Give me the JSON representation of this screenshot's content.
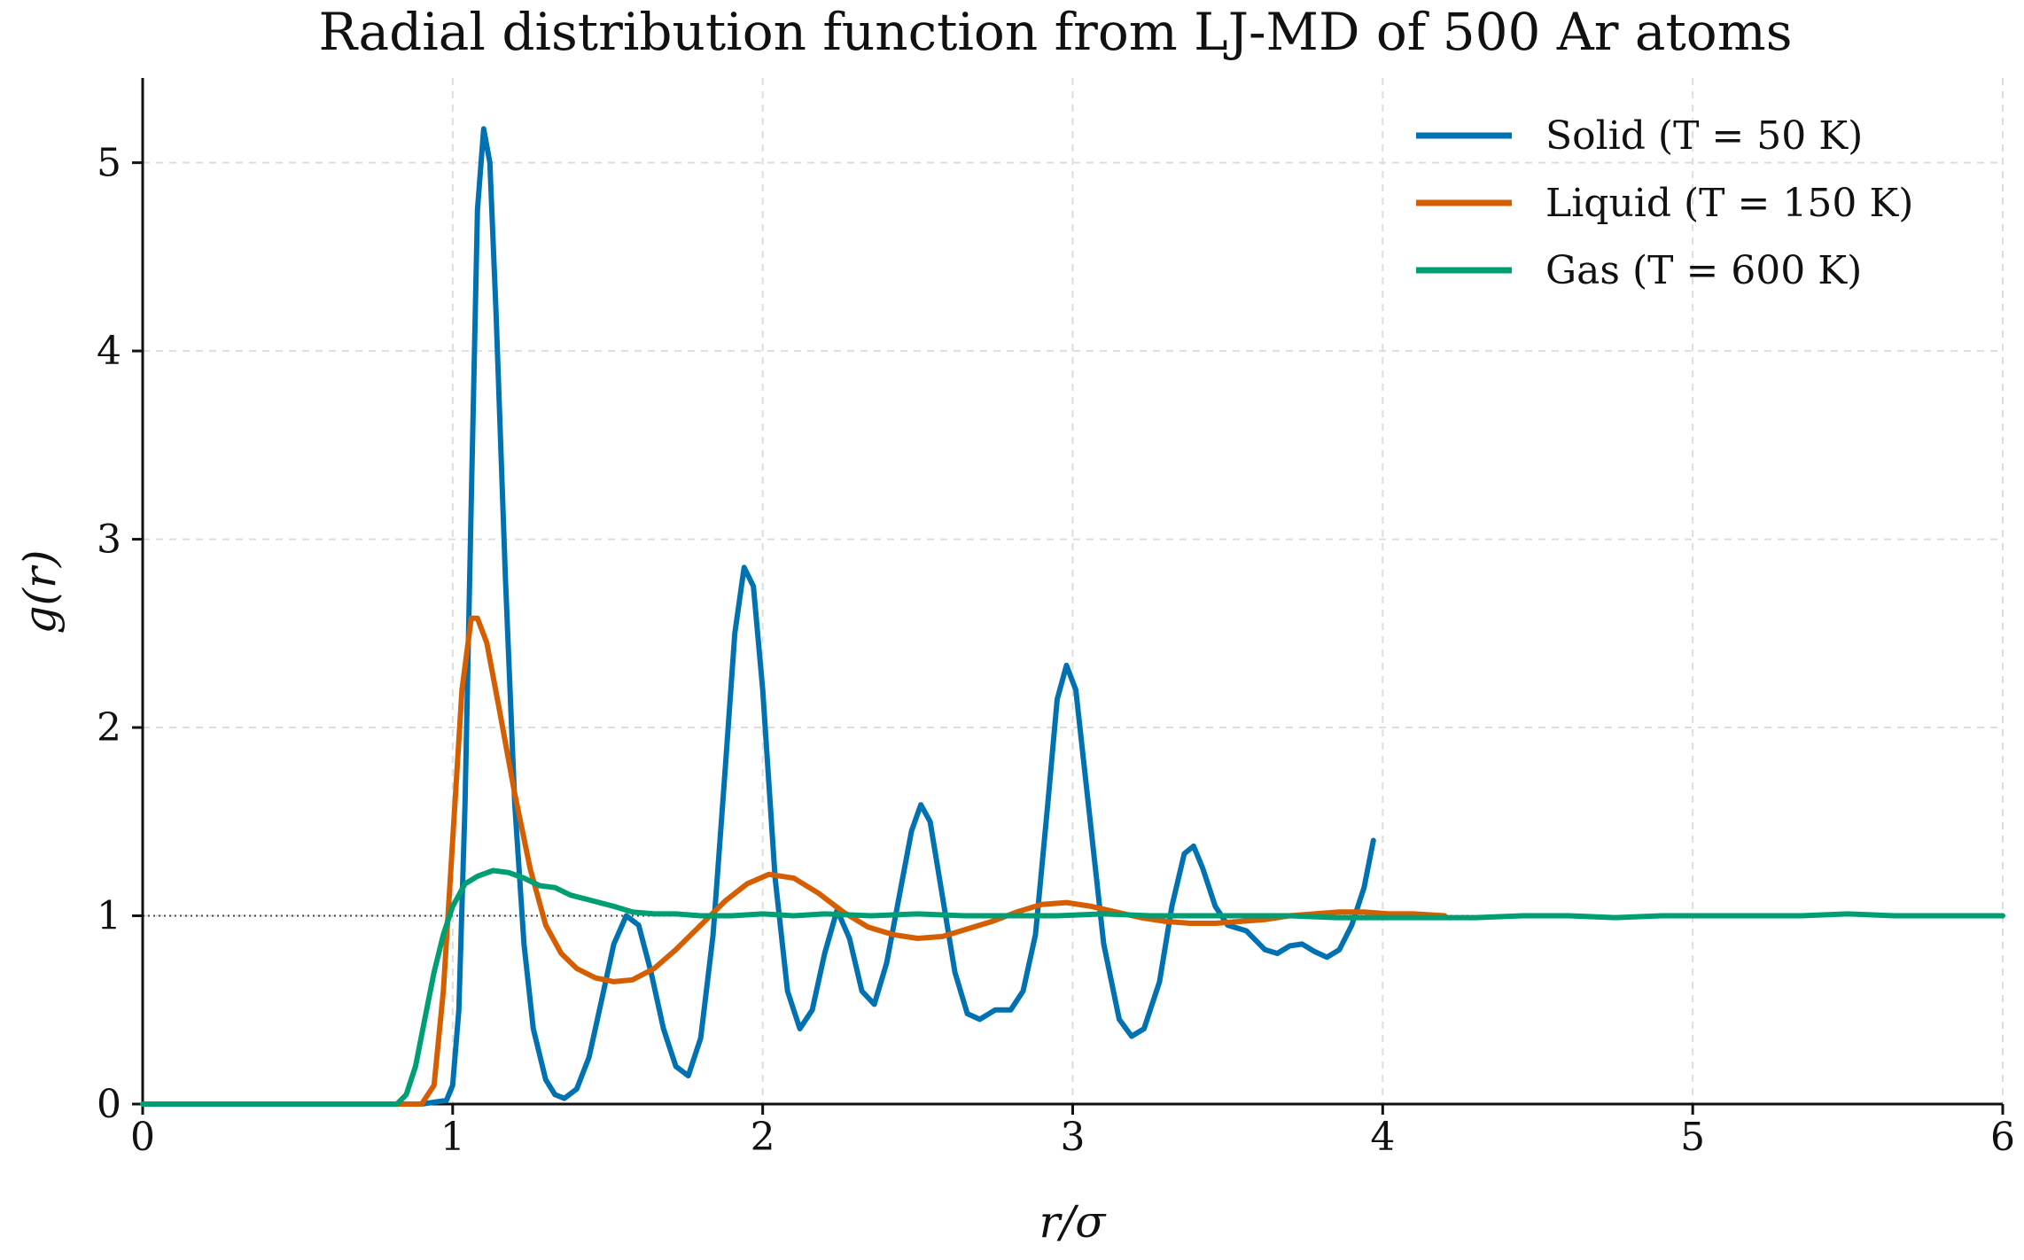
{
  "chart_data": {
    "type": "line",
    "title": "Radial distribution function from LJ-MD of 500 Ar atoms",
    "xlabel": "r/σ",
    "ylabel": "g(r)",
    "xlim": [
      0,
      6
    ],
    "ylim": [
      0,
      5.45
    ],
    "xticks": [
      "0",
      "1",
      "2",
      "3",
      "4",
      "5",
      "6"
    ],
    "yticks": [
      "0",
      "1",
      "2",
      "3",
      "4",
      "5"
    ],
    "grid": true,
    "legend_position": "top-right",
    "reference_line": {
      "y": 1,
      "style": "dotted"
    },
    "series": [
      {
        "name": "Solid (T = 50 K)",
        "color": "#0072B2",
        "points": [
          [
            0,
            0
          ],
          [
            0.9,
            0
          ],
          [
            0.98,
            0.02
          ],
          [
            1.0,
            0.1
          ],
          [
            1.02,
            0.5
          ],
          [
            1.04,
            1.6
          ],
          [
            1.06,
            3.2
          ],
          [
            1.08,
            4.75
          ],
          [
            1.1,
            5.18
          ],
          [
            1.12,
            5.0
          ],
          [
            1.14,
            4.2
          ],
          [
            1.17,
            2.8
          ],
          [
            1.2,
            1.6
          ],
          [
            1.23,
            0.85
          ],
          [
            1.26,
            0.4
          ],
          [
            1.3,
            0.13
          ],
          [
            1.33,
            0.05
          ],
          [
            1.36,
            0.03
          ],
          [
            1.4,
            0.08
          ],
          [
            1.44,
            0.25
          ],
          [
            1.48,
            0.55
          ],
          [
            1.52,
            0.85
          ],
          [
            1.56,
            1.0
          ],
          [
            1.6,
            0.95
          ],
          [
            1.64,
            0.7
          ],
          [
            1.68,
            0.4
          ],
          [
            1.72,
            0.2
          ],
          [
            1.76,
            0.15
          ],
          [
            1.8,
            0.35
          ],
          [
            1.84,
            0.9
          ],
          [
            1.88,
            1.8
          ],
          [
            1.91,
            2.5
          ],
          [
            1.94,
            2.85
          ],
          [
            1.97,
            2.75
          ],
          [
            2.0,
            2.2
          ],
          [
            2.04,
            1.2
          ],
          [
            2.08,
            0.6
          ],
          [
            2.12,
            0.4
          ],
          [
            2.16,
            0.5
          ],
          [
            2.2,
            0.8
          ],
          [
            2.24,
            1.03
          ],
          [
            2.28,
            0.88
          ],
          [
            2.32,
            0.6
          ],
          [
            2.36,
            0.53
          ],
          [
            2.4,
            0.75
          ],
          [
            2.44,
            1.1
          ],
          [
            2.48,
            1.45
          ],
          [
            2.51,
            1.59
          ],
          [
            2.54,
            1.5
          ],
          [
            2.58,
            1.1
          ],
          [
            2.62,
            0.7
          ],
          [
            2.66,
            0.48
          ],
          [
            2.7,
            0.45
          ],
          [
            2.75,
            0.5
          ],
          [
            2.8,
            0.5
          ],
          [
            2.84,
            0.6
          ],
          [
            2.88,
            0.9
          ],
          [
            2.92,
            1.6
          ],
          [
            2.95,
            2.15
          ],
          [
            2.98,
            2.33
          ],
          [
            3.01,
            2.2
          ],
          [
            3.05,
            1.6
          ],
          [
            3.1,
            0.85
          ],
          [
            3.15,
            0.45
          ],
          [
            3.19,
            0.36
          ],
          [
            3.23,
            0.4
          ],
          [
            3.28,
            0.65
          ],
          [
            3.32,
            1.05
          ],
          [
            3.36,
            1.33
          ],
          [
            3.39,
            1.37
          ],
          [
            3.42,
            1.25
          ],
          [
            3.46,
            1.05
          ],
          [
            3.5,
            0.95
          ],
          [
            3.56,
            0.92
          ],
          [
            3.62,
            0.82
          ],
          [
            3.66,
            0.8
          ],
          [
            3.7,
            0.84
          ],
          [
            3.74,
            0.85
          ],
          [
            3.78,
            0.81
          ],
          [
            3.82,
            0.78
          ],
          [
            3.86,
            0.82
          ],
          [
            3.9,
            0.95
          ],
          [
            3.94,
            1.15
          ],
          [
            3.97,
            1.4
          ]
        ]
      },
      {
        "name": "Liquid (T = 150 K)",
        "color": "#D55E00",
        "points": [
          [
            0,
            0
          ],
          [
            0.9,
            0
          ],
          [
            0.94,
            0.1
          ],
          [
            0.97,
            0.6
          ],
          [
            1.0,
            1.4
          ],
          [
            1.03,
            2.2
          ],
          [
            1.06,
            2.58
          ],
          [
            1.08,
            2.58
          ],
          [
            1.11,
            2.45
          ],
          [
            1.15,
            2.1
          ],
          [
            1.2,
            1.65
          ],
          [
            1.25,
            1.25
          ],
          [
            1.3,
            0.95
          ],
          [
            1.35,
            0.8
          ],
          [
            1.4,
            0.72
          ],
          [
            1.46,
            0.67
          ],
          [
            1.52,
            0.65
          ],
          [
            1.58,
            0.66
          ],
          [
            1.65,
            0.72
          ],
          [
            1.72,
            0.82
          ],
          [
            1.8,
            0.95
          ],
          [
            1.88,
            1.08
          ],
          [
            1.95,
            1.17
          ],
          [
            2.02,
            1.22
          ],
          [
            2.1,
            1.2
          ],
          [
            2.18,
            1.12
          ],
          [
            2.26,
            1.02
          ],
          [
            2.34,
            0.94
          ],
          [
            2.42,
            0.9
          ],
          [
            2.5,
            0.88
          ],
          [
            2.58,
            0.89
          ],
          [
            2.66,
            0.93
          ],
          [
            2.74,
            0.97
          ],
          [
            2.82,
            1.02
          ],
          [
            2.9,
            1.06
          ],
          [
            2.98,
            1.07
          ],
          [
            3.06,
            1.05
          ],
          [
            3.14,
            1.02
          ],
          [
            3.22,
            0.99
          ],
          [
            3.3,
            0.97
          ],
          [
            3.38,
            0.96
          ],
          [
            3.46,
            0.96
          ],
          [
            3.54,
            0.97
          ],
          [
            3.62,
            0.98
          ],
          [
            3.7,
            1.0
          ],
          [
            3.78,
            1.01
          ],
          [
            3.86,
            1.02
          ],
          [
            3.94,
            1.02
          ],
          [
            4.02,
            1.01
          ],
          [
            4.1,
            1.01
          ],
          [
            4.2,
            1.0
          ]
        ]
      },
      {
        "name": "Gas (T = 600 K)",
        "color": "#009E73",
        "points": [
          [
            0,
            0
          ],
          [
            0.82,
            0
          ],
          [
            0.85,
            0.05
          ],
          [
            0.88,
            0.2
          ],
          [
            0.91,
            0.45
          ],
          [
            0.94,
            0.7
          ],
          [
            0.97,
            0.9
          ],
          [
            1.0,
            1.05
          ],
          [
            1.04,
            1.17
          ],
          [
            1.08,
            1.21
          ],
          [
            1.13,
            1.24
          ],
          [
            1.18,
            1.23
          ],
          [
            1.23,
            1.2
          ],
          [
            1.28,
            1.16
          ],
          [
            1.33,
            1.15
          ],
          [
            1.38,
            1.11
          ],
          [
            1.45,
            1.08
          ],
          [
            1.52,
            1.05
          ],
          [
            1.58,
            1.02
          ],
          [
            1.65,
            1.01
          ],
          [
            1.72,
            1.01
          ],
          [
            1.8,
            1.0
          ],
          [
            1.9,
            1.0
          ],
          [
            2.0,
            1.01
          ],
          [
            2.1,
            1.0
          ],
          [
            2.2,
            1.01
          ],
          [
            2.35,
            1.0
          ],
          [
            2.5,
            1.01
          ],
          [
            2.65,
            1.0
          ],
          [
            2.8,
            1.0
          ],
          [
            2.95,
            1.0
          ],
          [
            3.1,
            1.01
          ],
          [
            3.25,
            1.0
          ],
          [
            3.4,
            1.0
          ],
          [
            3.55,
            1.0
          ],
          [
            3.7,
            1.0
          ],
          [
            3.85,
            0.99
          ],
          [
            4.0,
            0.99
          ],
          [
            4.15,
            0.99
          ],
          [
            4.3,
            0.99
          ],
          [
            4.45,
            1.0
          ],
          [
            4.6,
            1.0
          ],
          [
            4.75,
            0.99
          ],
          [
            4.9,
            1.0
          ],
          [
            5.05,
            1.0
          ],
          [
            5.2,
            1.0
          ],
          [
            5.35,
            1.0
          ],
          [
            5.5,
            1.01
          ],
          [
            5.65,
            1.0
          ],
          [
            5.8,
            1.0
          ],
          [
            5.95,
            1.0
          ],
          [
            6.0,
            1.0
          ]
        ]
      }
    ]
  }
}
